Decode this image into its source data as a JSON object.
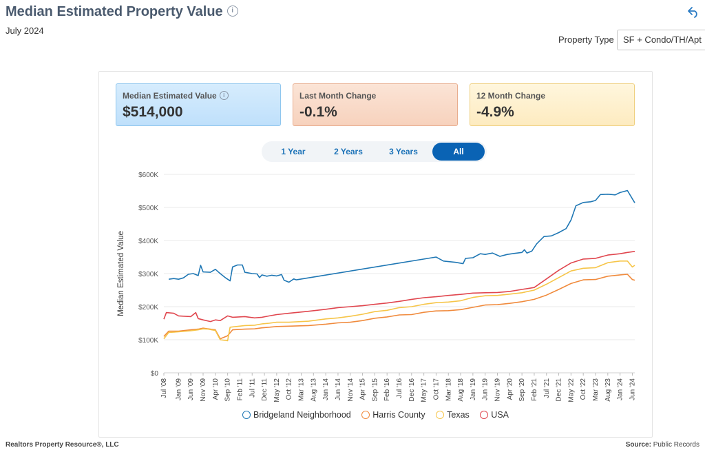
{
  "header": {
    "title": "Median Estimated Property Value",
    "subtitle": "July 2024",
    "property_type_label": "Property Type",
    "property_type_value": "SF + Condo/TH/Apt"
  },
  "cards": [
    {
      "label": "Median Estimated Value",
      "value": "$514,000"
    },
    {
      "label": "Last Month Change",
      "value": "-0.1%"
    },
    {
      "label": "12 Month Change",
      "value": "-4.9%"
    }
  ],
  "tabs": [
    {
      "label": "1 Year",
      "active": false
    },
    {
      "label": "2 Years",
      "active": false
    },
    {
      "label": "3 Years",
      "active": false
    },
    {
      "label": "All",
      "active": true
    }
  ],
  "footer": {
    "left": "Realtors Property Resource®, LLC",
    "source_label": "Source:",
    "source_value": "Public Records"
  },
  "chart_data": {
    "type": "line",
    "ylabel": "Median Estimated Value",
    "ylim": [
      0,
      600000
    ],
    "yticks": [
      0,
      100000,
      200000,
      300000,
      400000,
      500000,
      600000
    ],
    "ytick_labels": [
      "$0",
      "$100K",
      "$200K",
      "$300K",
      "$400K",
      "$500K",
      "$600K"
    ],
    "xlim": [
      "2008-07",
      "2024-07"
    ],
    "xticks": [
      "2008-07",
      "2009-01",
      "2009-06",
      "2009-11",
      "2010-04",
      "2010-09",
      "2011-02",
      "2011-07",
      "2011-12",
      "2012-05",
      "2012-10",
      "2013-03",
      "2013-08",
      "2014-01",
      "2014-06",
      "2014-11",
      "2015-04",
      "2015-09",
      "2016-02",
      "2016-07",
      "2016-12",
      "2017-05",
      "2017-10",
      "2018-03",
      "2018-08",
      "2019-01",
      "2019-06",
      "2019-11",
      "2020-04",
      "2020-09",
      "2021-02",
      "2021-07",
      "2021-12",
      "2022-05",
      "2022-10",
      "2023-03",
      "2023-08",
      "2024-01",
      "2024-06"
    ],
    "xtick_labels": [
      "Jul '08",
      "Jan '09",
      "Jun '09",
      "Nov '09",
      "Apr '10",
      "Sep '10",
      "Feb '11",
      "Jul '11",
      "Dec '11",
      "May '12",
      "Oct '12",
      "Mar '13",
      "Aug '13",
      "Jan '14",
      "Jun '14",
      "Nov '14",
      "Apr '15",
      "Sep '15",
      "Feb '16",
      "Jul '16",
      "Dec '16",
      "May '17",
      "Oct '17",
      "Mar '18",
      "Aug '18",
      "Jan '19",
      "Jun '19",
      "Nov '19",
      "Apr '20",
      "Sep '20",
      "Feb '21",
      "Jul '21",
      "Dec '21",
      "May '22",
      "Oct '22",
      "Mar '23",
      "Aug '23",
      "Jan '24",
      "Jun '24"
    ],
    "grid": "horizontal",
    "legend_position": "bottom",
    "series": [
      {
        "name": "Bridgeland Neighborhood",
        "color": "#1f77b4",
        "points": [
          [
            "2008-09",
            283000
          ],
          [
            "2008-11",
            285000
          ],
          [
            "2009-01",
            283000
          ],
          [
            "2009-03",
            287000
          ],
          [
            "2009-05",
            298000
          ],
          [
            "2009-07",
            300000
          ],
          [
            "2009-09",
            294000
          ],
          [
            "2009-10",
            325000
          ],
          [
            "2009-11",
            305000
          ],
          [
            "2010-02",
            304000
          ],
          [
            "2010-04",
            313000
          ],
          [
            "2010-06",
            300000
          ],
          [
            "2010-08",
            288000
          ],
          [
            "2010-10",
            278000
          ],
          [
            "2010-11",
            320000
          ],
          [
            "2011-01",
            326000
          ],
          [
            "2011-03",
            326000
          ],
          [
            "2011-04",
            304000
          ],
          [
            "2011-07",
            300000
          ],
          [
            "2011-09",
            299000
          ],
          [
            "2011-10",
            288000
          ],
          [
            "2011-11",
            296000
          ],
          [
            "2012-01",
            292000
          ],
          [
            "2012-03",
            295000
          ],
          [
            "2012-05",
            293000
          ],
          [
            "2012-07",
            297000
          ],
          [
            "2012-08",
            280000
          ],
          [
            "2012-10",
            274000
          ],
          [
            "2012-12",
            284000
          ],
          [
            "2013-01",
            281000
          ],
          [
            "2017-10",
            350000
          ],
          [
            "2018-01",
            338000
          ],
          [
            "2018-06",
            334000
          ],
          [
            "2018-09",
            330000
          ],
          [
            "2018-10",
            346000
          ],
          [
            "2019-01",
            348000
          ],
          [
            "2019-04",
            360000
          ],
          [
            "2019-06",
            358000
          ],
          [
            "2019-09",
            362000
          ],
          [
            "2019-12",
            352000
          ],
          [
            "2020-03",
            358000
          ],
          [
            "2020-06",
            361000
          ],
          [
            "2020-09",
            364000
          ],
          [
            "2020-10",
            372000
          ],
          [
            "2020-11",
            362000
          ],
          [
            "2021-01",
            368000
          ],
          [
            "2021-03",
            390000
          ],
          [
            "2021-06",
            412000
          ],
          [
            "2021-09",
            414000
          ],
          [
            "2021-12",
            424000
          ],
          [
            "2022-03",
            436000
          ],
          [
            "2022-05",
            462000
          ],
          [
            "2022-07",
            505000
          ],
          [
            "2022-10",
            515000
          ],
          [
            "2023-01",
            517000
          ],
          [
            "2023-03",
            521000
          ],
          [
            "2023-05",
            539000
          ],
          [
            "2023-08",
            540000
          ],
          [
            "2023-11",
            538000
          ],
          [
            "2024-01",
            545000
          ],
          [
            "2024-04",
            551000
          ],
          [
            "2024-07",
            514000
          ]
        ]
      },
      {
        "name": "Harris County",
        "color": "#f08a3c",
        "points": [
          [
            "2008-07",
            110000
          ],
          [
            "2008-09",
            126000
          ],
          [
            "2009-01",
            126000
          ],
          [
            "2009-06",
            130000
          ],
          [
            "2009-09",
            132000
          ],
          [
            "2009-11",
            135000
          ],
          [
            "2010-01",
            133000
          ],
          [
            "2010-04",
            130000
          ],
          [
            "2010-06",
            103000
          ],
          [
            "2010-09",
            112000
          ],
          [
            "2010-11",
            130000
          ],
          [
            "2011-04",
            132000
          ],
          [
            "2011-08",
            133000
          ],
          [
            "2011-11",
            136000
          ],
          [
            "2012-02",
            138000
          ],
          [
            "2012-05",
            140000
          ],
          [
            "2012-10",
            141000
          ],
          [
            "2013-06",
            143000
          ],
          [
            "2014-01",
            147000
          ],
          [
            "2014-06",
            151000
          ],
          [
            "2014-11",
            153000
          ],
          [
            "2015-04",
            158000
          ],
          [
            "2015-09",
            165000
          ],
          [
            "2016-02",
            169000
          ],
          [
            "2016-07",
            175000
          ],
          [
            "2016-12",
            176000
          ],
          [
            "2017-05",
            183000
          ],
          [
            "2017-10",
            187000
          ],
          [
            "2018-03",
            188000
          ],
          [
            "2018-08",
            191000
          ],
          [
            "2019-01",
            198000
          ],
          [
            "2019-06",
            205000
          ],
          [
            "2019-11",
            206000
          ],
          [
            "2020-04",
            210000
          ],
          [
            "2020-09",
            215000
          ],
          [
            "2021-02",
            222000
          ],
          [
            "2021-07",
            235000
          ],
          [
            "2021-12",
            252000
          ],
          [
            "2022-05",
            270000
          ],
          [
            "2022-10",
            281000
          ],
          [
            "2023-03",
            282000
          ],
          [
            "2023-08",
            292000
          ],
          [
            "2024-01",
            296000
          ],
          [
            "2024-04",
            298000
          ],
          [
            "2024-06",
            282000
          ],
          [
            "2024-07",
            280000
          ]
        ]
      },
      {
        "name": "Texas",
        "color": "#f6c548",
        "points": [
          [
            "2008-07",
            103000
          ],
          [
            "2008-09",
            122000
          ],
          [
            "2009-01",
            124000
          ],
          [
            "2009-06",
            127000
          ],
          [
            "2009-09",
            130000
          ],
          [
            "2009-11",
            133000
          ],
          [
            "2010-01",
            132000
          ],
          [
            "2010-04",
            128000
          ],
          [
            "2010-06",
            100000
          ],
          [
            "2010-08",
            98000
          ],
          [
            "2010-09",
            97000
          ],
          [
            "2010-10",
            138000
          ],
          [
            "2011-04",
            143000
          ],
          [
            "2011-08",
            144000
          ],
          [
            "2011-11",
            148000
          ],
          [
            "2012-02",
            150000
          ],
          [
            "2012-05",
            153000
          ],
          [
            "2012-10",
            153000
          ],
          [
            "2013-06",
            156000
          ],
          [
            "2014-01",
            163000
          ],
          [
            "2014-06",
            166000
          ],
          [
            "2014-11",
            171000
          ],
          [
            "2015-04",
            177000
          ],
          [
            "2015-09",
            185000
          ],
          [
            "2016-02",
            189000
          ],
          [
            "2016-07",
            197000
          ],
          [
            "2016-12",
            200000
          ],
          [
            "2017-05",
            207000
          ],
          [
            "2017-10",
            212000
          ],
          [
            "2018-03",
            214000
          ],
          [
            "2018-08",
            218000
          ],
          [
            "2019-01",
            228000
          ],
          [
            "2019-06",
            233000
          ],
          [
            "2019-11",
            234000
          ],
          [
            "2020-04",
            238000
          ],
          [
            "2020-09",
            242000
          ],
          [
            "2021-02",
            250000
          ],
          [
            "2021-07",
            268000
          ],
          [
            "2021-12",
            288000
          ],
          [
            "2022-05",
            308000
          ],
          [
            "2022-10",
            316000
          ],
          [
            "2023-03",
            318000
          ],
          [
            "2023-08",
            333000
          ],
          [
            "2024-01",
            338000
          ],
          [
            "2024-04",
            338000
          ],
          [
            "2024-06",
            320000
          ],
          [
            "2024-07",
            325000
          ]
        ]
      },
      {
        "name": "USA",
        "color": "#e0464e",
        "points": [
          [
            "2008-07",
            162000
          ],
          [
            "2008-08",
            182000
          ],
          [
            "2008-11",
            180000
          ],
          [
            "2009-01",
            172000
          ],
          [
            "2009-06",
            170000
          ],
          [
            "2009-08",
            182000
          ],
          [
            "2009-09",
            164000
          ],
          [
            "2009-11",
            160000
          ],
          [
            "2010-02",
            155000
          ],
          [
            "2010-04",
            160000
          ],
          [
            "2010-06",
            158000
          ],
          [
            "2010-09",
            172000
          ],
          [
            "2010-11",
            168000
          ],
          [
            "2011-04",
            170000
          ],
          [
            "2011-08",
            166000
          ],
          [
            "2011-11",
            168000
          ],
          [
            "2012-02",
            172000
          ],
          [
            "2012-05",
            176000
          ],
          [
            "2012-10",
            180000
          ],
          [
            "2013-06",
            186000
          ],
          [
            "2014-01",
            192000
          ],
          [
            "2014-06",
            197000
          ],
          [
            "2014-11",
            200000
          ],
          [
            "2015-04",
            203000
          ],
          [
            "2015-09",
            207000
          ],
          [
            "2016-02",
            211000
          ],
          [
            "2016-07",
            216000
          ],
          [
            "2016-12",
            222000
          ],
          [
            "2017-05",
            227000
          ],
          [
            "2017-10",
            230000
          ],
          [
            "2018-03",
            234000
          ],
          [
            "2018-08",
            237000
          ],
          [
            "2019-01",
            241000
          ],
          [
            "2019-06",
            242000
          ],
          [
            "2019-11",
            243000
          ],
          [
            "2020-04",
            246000
          ],
          [
            "2020-09",
            252000
          ],
          [
            "2021-02",
            258000
          ],
          [
            "2021-07",
            284000
          ],
          [
            "2021-12",
            310000
          ],
          [
            "2022-05",
            332000
          ],
          [
            "2022-10",
            344000
          ],
          [
            "2023-03",
            346000
          ],
          [
            "2023-08",
            356000
          ],
          [
            "2024-01",
            360000
          ],
          [
            "2024-04",
            364000
          ],
          [
            "2024-07",
            367000
          ]
        ]
      }
    ]
  }
}
